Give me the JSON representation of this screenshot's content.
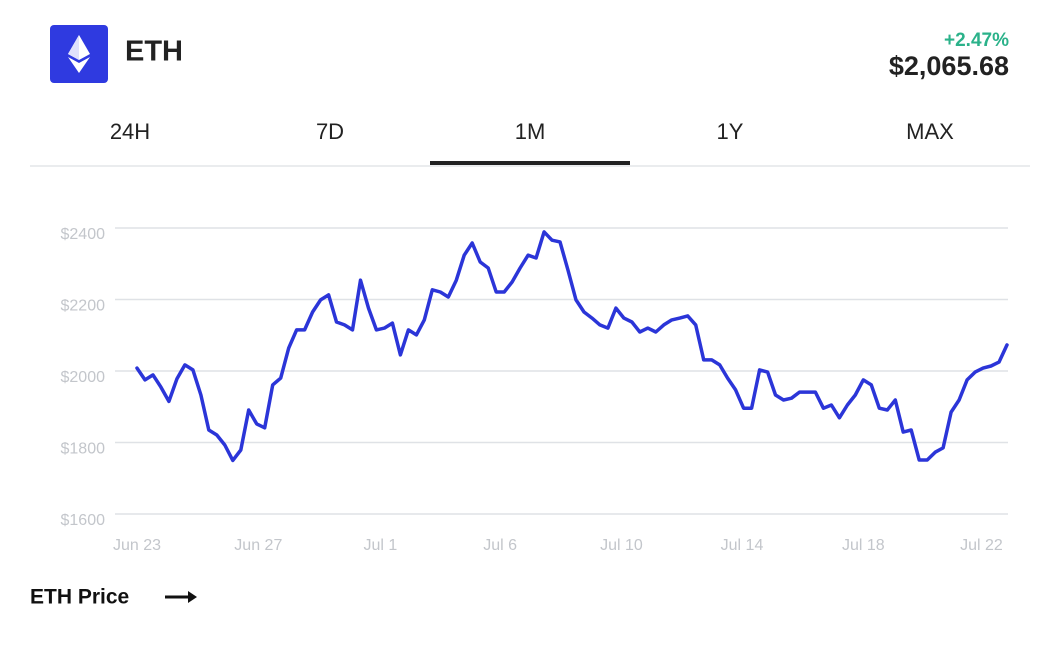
{
  "header": {
    "symbol": "ETH",
    "change": "+2.47%",
    "price": "$2,065.68"
  },
  "tabs": {
    "items": [
      "24H",
      "7D",
      "1M",
      "1Y",
      "MAX"
    ],
    "active": 2
  },
  "chart_data": {
    "type": "line",
    "color": "#2b35d8",
    "values": [
      2008,
      1975,
      1989,
      1955,
      1915,
      1978,
      2017,
      2003,
      1933,
      1835,
      1821,
      1793,
      1750,
      1779,
      1891,
      1852,
      1841,
      1961,
      1980,
      2064,
      2115,
      2115,
      2165,
      2199,
      2213,
      2137,
      2129,
      2115,
      2254,
      2176,
      2115,
      2120,
      2134,
      2045,
      2115,
      2101,
      2143,
      2227,
      2221,
      2207,
      2254,
      2324,
      2358,
      2305,
      2288,
      2221,
      2221,
      2249,
      2288,
      2324,
      2316,
      2389,
      2366,
      2361,
      2282,
      2199,
      2165,
      2148,
      2129,
      2120,
      2176,
      2148,
      2137,
      2109,
      2120,
      2109,
      2129,
      2143,
      2148,
      2154,
      2129,
      2031,
      2031,
      2017,
      1980,
      1947,
      1896,
      1896,
      2003,
      1997,
      1933,
      1919,
      1924,
      1941,
      1941,
      1941,
      1896,
      1905,
      1869,
      1905,
      1933,
      1975,
      1961,
      1896,
      1891,
      1919,
      1829,
      1835,
      1751,
      1751,
      1773,
      1785,
      1885,
      1919,
      1975,
      1997,
      2008,
      2014,
      2025,
      2073
    ],
    "xlim": [
      0,
      109
    ],
    "xticks": [
      {
        "value": 0,
        "label": "Jun 23"
      },
      {
        "value": 15.2,
        "label": "Jun 27"
      },
      {
        "value": 30.5,
        "label": "Jul 1"
      },
      {
        "value": 45.5,
        "label": "Jul 6"
      },
      {
        "value": 60.7,
        "label": "Jul 10"
      },
      {
        "value": 75.8,
        "label": "Jul 14"
      },
      {
        "value": 91,
        "label": "Jul 18"
      },
      {
        "value": 105.8,
        "label": "Jul 22"
      }
    ],
    "ylim": [
      1600,
      2400
    ],
    "yticks": [
      {
        "value": 1600,
        "label": "$1600"
      },
      {
        "value": 1800,
        "label": "$1800"
      },
      {
        "value": 2000,
        "label": "$2000"
      },
      {
        "value": 2200,
        "label": "$2200"
      },
      {
        "value": 2400,
        "label": "$2400"
      }
    ],
    "grid": true
  },
  "footer": {
    "link": "ETH Price"
  }
}
